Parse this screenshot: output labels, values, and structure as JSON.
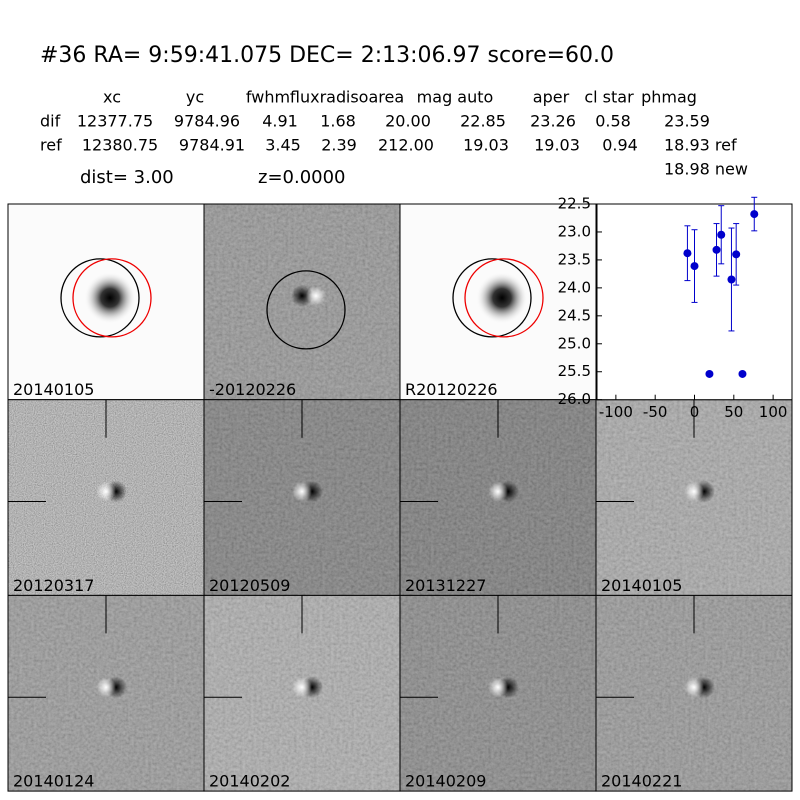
{
  "header": {
    "title": "#36   RA= 9:59:41.075 DEC= 2:13:06.97      score=60.0"
  },
  "table": {
    "columns": [
      "xc",
      "yc",
      "fwhm",
      "fluxrad",
      "isoarea",
      "mag auto",
      "aper",
      "cl star",
      "phmag"
    ],
    "rows": [
      [
        "dif",
        "12377.75",
        "9784.96",
        "4.91",
        "1.68",
        "20.00",
        "22.85",
        "23.26",
        "0.58",
        "23.59"
      ],
      [
        "ref",
        "12380.75",
        "9784.91",
        "3.45",
        "2.39",
        "212.00",
        "19.03",
        "19.03",
        "0.94",
        "18.93 ref"
      ]
    ],
    "extra": "18.98 new"
  },
  "dist": "dist=  3.00",
  "z": "z=0.0000",
  "panels": [
    "20140105",
    "-20120226",
    "R20120226",
    "20120317",
    "20120509",
    "20131227",
    "20140105",
    "20140124",
    "20140202",
    "20140209",
    "20140221"
  ],
  "chart_data": {
    "type": "errorbar",
    "x": [
      -9,
      0,
      19,
      28,
      34,
      47,
      53,
      61,
      76
    ],
    "series": [
      {
        "color": "#0000cc",
        "values": [
          23.38,
          23.61,
          25.54,
          23.32,
          23.05,
          23.85,
          23.4,
          25.54,
          22.68
        ],
        "errors": [
          0.49,
          0.65,
          0.03,
          0.47,
          0.52,
          0.92,
          0.55,
          0.03,
          0.3
        ]
      }
    ],
    "xlim": [
      -124,
      124
    ],
    "ylim": [
      26.0,
      22.5
    ],
    "xticks": [
      -100,
      -50,
      0,
      50,
      100
    ],
    "yticks": [
      {
        "value": 22.5,
        "label": "22.5"
      },
      {
        "value": 23.0,
        "label": "23.0"
      },
      {
        "value": 23.5,
        "label": "23.5"
      },
      {
        "value": 24.0,
        "label": "24.0"
      },
      {
        "value": 24.5,
        "label": "24.5"
      },
      {
        "value": 25.0,
        "label": "25.0"
      },
      {
        "value": 25.5,
        "label": "25.5"
      },
      {
        "value": 26.0,
        "label": "26.0"
      }
    ]
  }
}
